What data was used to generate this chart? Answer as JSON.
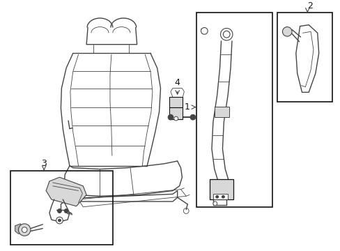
{
  "background_color": "#ffffff",
  "line_color": "#444444",
  "box_color": "#111111",
  "label_color": "#111111",
  "fig_width": 4.89,
  "fig_height": 3.6,
  "dpi": 100,
  "seat_color": "#aaaaaa",
  "fill_light": "#d8d8d8",
  "fill_mid": "#bbbbbb"
}
